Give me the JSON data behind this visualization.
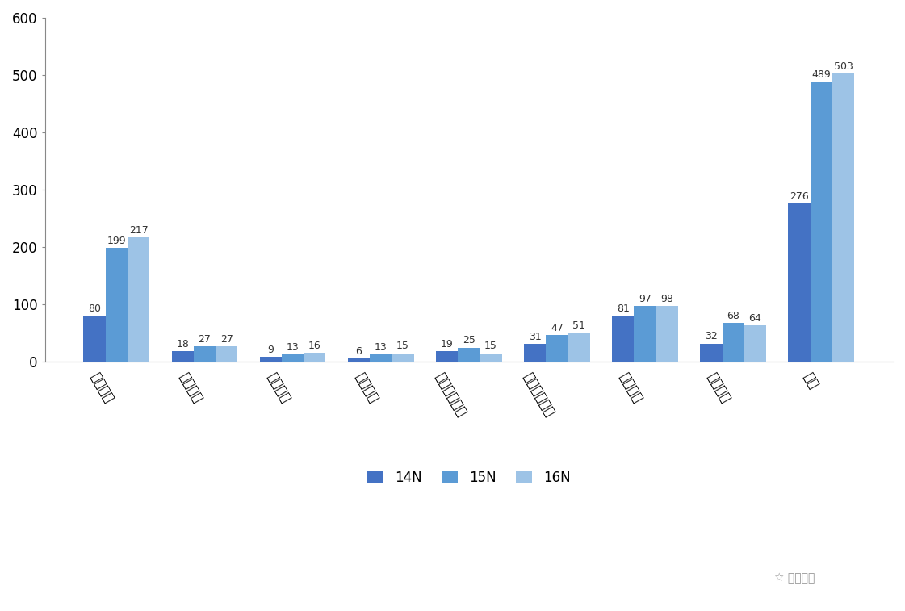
{
  "categories": [
    "运营人员",
    "管理人员",
    "财务人员",
    "采购人员",
    "行政后勤人员",
    "技术研发人员",
    "客服人员",
    "仓储人员",
    "合计"
  ],
  "series": {
    "14N": [
      80,
      18,
      9,
      6,
      19,
      31,
      81,
      32,
      276
    ],
    "15N": [
      199,
      27,
      13,
      13,
      25,
      47,
      97,
      68,
      489
    ],
    "16N": [
      217,
      27,
      16,
      15,
      15,
      51,
      98,
      64,
      503
    ]
  },
  "colors": {
    "14N": "#4472C4",
    "15N": "#5B9BD5",
    "16N": "#9DC3E6"
  },
  "legend_labels": [
    "14N",
    "15N",
    "16N"
  ],
  "ylim": [
    0,
    600
  ],
  "yticks": [
    0,
    100,
    200,
    300,
    400,
    500,
    600
  ],
  "bar_width": 0.25,
  "value_fontsize": 9,
  "tick_fontsize": 12,
  "legend_fontsize": 12,
  "watermark_text": "☆ 六合咋询",
  "background_color": "#FFFFFF",
  "xlabel_rotation": -60
}
